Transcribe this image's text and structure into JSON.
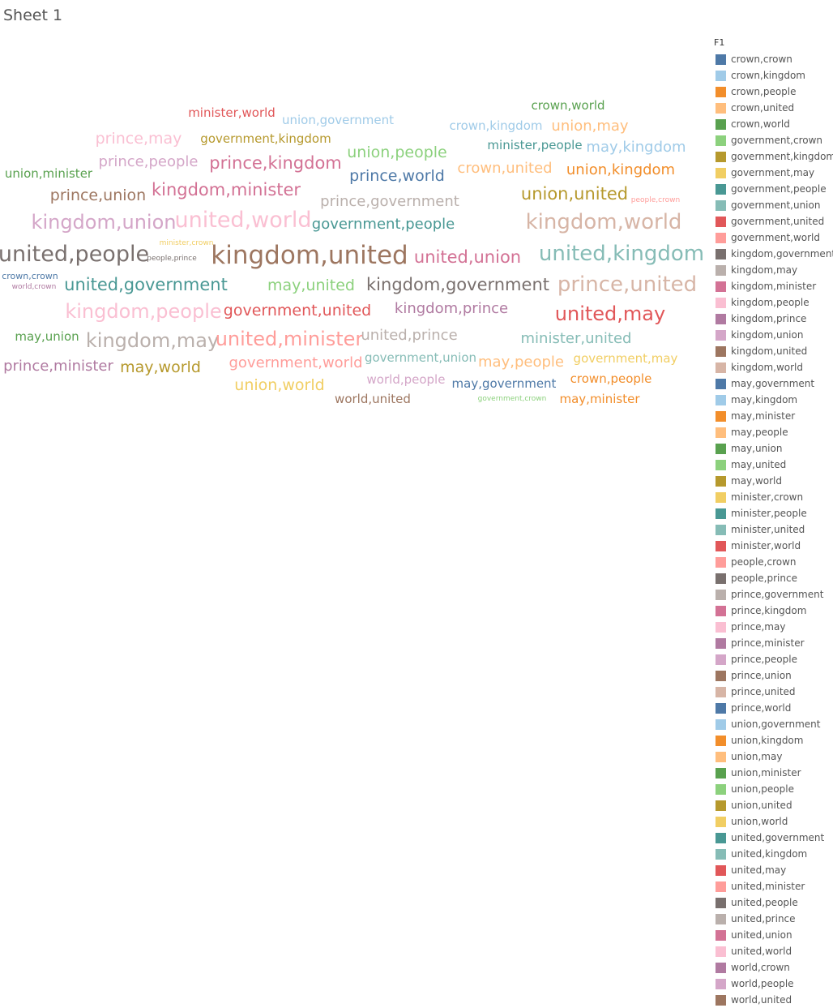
{
  "sheet": {
    "title": "Sheet 1"
  },
  "legend": {
    "title": "F1",
    "items": [
      {
        "label": "crown,crown",
        "color": "#4e79a7"
      },
      {
        "label": "crown,kingdom",
        "color": "#a0cbe8"
      },
      {
        "label": "crown,people",
        "color": "#f28e2b"
      },
      {
        "label": "crown,united",
        "color": "#ffbe7d"
      },
      {
        "label": "crown,world",
        "color": "#59a14f"
      },
      {
        "label": "government,crown",
        "color": "#8cd17d"
      },
      {
        "label": "government,kingdom",
        "color": "#b6992d"
      },
      {
        "label": "government,may",
        "color": "#f1ce63"
      },
      {
        "label": "government,people",
        "color": "#499894"
      },
      {
        "label": "government,union",
        "color": "#86bcb6"
      },
      {
        "label": "government,united",
        "color": "#e15759"
      },
      {
        "label": "government,world",
        "color": "#ff9d9a"
      },
      {
        "label": "kingdom,government",
        "color": "#79706e"
      },
      {
        "label": "kingdom,may",
        "color": "#bab0ac"
      },
      {
        "label": "kingdom,minister",
        "color": "#d37295"
      },
      {
        "label": "kingdom,people",
        "color": "#fabfd2"
      },
      {
        "label": "kingdom,prince",
        "color": "#b07aa1"
      },
      {
        "label": "kingdom,union",
        "color": "#d4a6c8"
      },
      {
        "label": "kingdom,united",
        "color": "#9d7660"
      },
      {
        "label": "kingdom,world",
        "color": "#d7b5a6"
      },
      {
        "label": "may,government",
        "color": "#4e79a7"
      },
      {
        "label": "may,kingdom",
        "color": "#a0cbe8"
      },
      {
        "label": "may,minister",
        "color": "#f28e2b"
      },
      {
        "label": "may,people",
        "color": "#ffbe7d"
      },
      {
        "label": "may,union",
        "color": "#59a14f"
      },
      {
        "label": "may,united",
        "color": "#8cd17d"
      },
      {
        "label": "may,world",
        "color": "#b6992d"
      },
      {
        "label": "minister,crown",
        "color": "#f1ce63"
      },
      {
        "label": "minister,people",
        "color": "#499894"
      },
      {
        "label": "minister,united",
        "color": "#86bcb6"
      },
      {
        "label": "minister,world",
        "color": "#e15759"
      },
      {
        "label": "people,crown",
        "color": "#ff9d9a"
      },
      {
        "label": "people,prince",
        "color": "#79706e"
      },
      {
        "label": "prince,government",
        "color": "#bab0ac"
      },
      {
        "label": "prince,kingdom",
        "color": "#d37295"
      },
      {
        "label": "prince,may",
        "color": "#fabfd2"
      },
      {
        "label": "prince,minister",
        "color": "#b07aa1"
      },
      {
        "label": "prince,people",
        "color": "#d4a6c8"
      },
      {
        "label": "prince,union",
        "color": "#9d7660"
      },
      {
        "label": "prince,united",
        "color": "#d7b5a6"
      },
      {
        "label": "prince,world",
        "color": "#4e79a7"
      },
      {
        "label": "union,government",
        "color": "#a0cbe8"
      },
      {
        "label": "union,kingdom",
        "color": "#f28e2b"
      },
      {
        "label": "union,may",
        "color": "#ffbe7d"
      },
      {
        "label": "union,minister",
        "color": "#59a14f"
      },
      {
        "label": "union,people",
        "color": "#8cd17d"
      },
      {
        "label": "union,united",
        "color": "#b6992d"
      },
      {
        "label": "union,world",
        "color": "#f1ce63"
      },
      {
        "label": "united,government",
        "color": "#499894"
      },
      {
        "label": "united,kingdom",
        "color": "#86bcb6"
      },
      {
        "label": "united,may",
        "color": "#e15759"
      },
      {
        "label": "united,minister",
        "color": "#ff9d9a"
      },
      {
        "label": "united,people",
        "color": "#79706e"
      },
      {
        "label": "united,prince",
        "color": "#bab0ac"
      },
      {
        "label": "united,union",
        "color": "#d37295"
      },
      {
        "label": "united,world",
        "color": "#fabfd2"
      },
      {
        "label": "world,crown",
        "color": "#b07aa1"
      },
      {
        "label": "world,people",
        "color": "#d4a6c8"
      },
      {
        "label": "world,united",
        "color": "#9d7660"
      }
    ]
  },
  "chart_data": {
    "type": "word-cloud",
    "title": "Sheet 1",
    "legend_title": "F1",
    "legend_position": "right",
    "words": [
      {
        "text": "kingdom,united",
        "weight": 10,
        "color": "#9d7660"
      },
      {
        "text": "united,people",
        "weight": 9,
        "color": "#79706e"
      },
      {
        "text": "united,world",
        "weight": 9,
        "color": "#fabfd2"
      },
      {
        "text": "kingdom,world",
        "weight": 8,
        "color": "#d7b5a6"
      },
      {
        "text": "united,kingdom",
        "weight": 8,
        "color": "#86bcb6"
      },
      {
        "text": "prince,united",
        "weight": 8,
        "color": "#d7b5a6"
      },
      {
        "text": "united,may",
        "weight": 7,
        "color": "#e15759"
      },
      {
        "text": "kingdom,people",
        "weight": 7,
        "color": "#fabfd2"
      },
      {
        "text": "kingdom,may",
        "weight": 7,
        "color": "#bab0ac"
      },
      {
        "text": "united,minister",
        "weight": 7,
        "color": "#ff9d9a"
      },
      {
        "text": "kingdom,union",
        "weight": 7,
        "color": "#d4a6c8"
      },
      {
        "text": "kingdom,minister",
        "weight": 6,
        "color": "#d37295"
      },
      {
        "text": "prince,kingdom",
        "weight": 6,
        "color": "#d37295"
      },
      {
        "text": "united,government",
        "weight": 6,
        "color": "#499894"
      },
      {
        "text": "united,union",
        "weight": 6,
        "color": "#d37295"
      },
      {
        "text": "union,united",
        "weight": 6,
        "color": "#b6992d"
      },
      {
        "text": "kingdom,government",
        "weight": 6,
        "color": "#79706e"
      },
      {
        "text": "prince,union",
        "weight": 5,
        "color": "#9d7660"
      },
      {
        "text": "prince,world",
        "weight": 5,
        "color": "#4e79a7"
      },
      {
        "text": "prince,may",
        "weight": 5,
        "color": "#fabfd2"
      },
      {
        "text": "may,united",
        "weight": 5,
        "color": "#8cd17d"
      },
      {
        "text": "government,united",
        "weight": 5,
        "color": "#e15759"
      },
      {
        "text": "union,people",
        "weight": 5,
        "color": "#8cd17d"
      },
      {
        "text": "union,world",
        "weight": 5,
        "color": "#f1ce63"
      },
      {
        "text": "may,world",
        "weight": 5,
        "color": "#b6992d"
      },
      {
        "text": "kingdom,prince",
        "weight": 4,
        "color": "#b07aa1"
      },
      {
        "text": "prince,people",
        "weight": 4,
        "color": "#d4a6c8"
      },
      {
        "text": "prince,government",
        "weight": 4,
        "color": "#bab0ac"
      },
      {
        "text": "united,prince",
        "weight": 4,
        "color": "#bab0ac"
      },
      {
        "text": "crown,united",
        "weight": 4,
        "color": "#ffbe7d"
      },
      {
        "text": "union,kingdom",
        "weight": 4,
        "color": "#f28e2b"
      },
      {
        "text": "may,kingdom",
        "weight": 4,
        "color": "#a0cbe8"
      },
      {
        "text": "union,may",
        "weight": 4,
        "color": "#ffbe7d"
      },
      {
        "text": "government,people",
        "weight": 4,
        "color": "#499894"
      },
      {
        "text": "minister,united",
        "weight": 4,
        "color": "#86bcb6"
      },
      {
        "text": "may,people",
        "weight": 4,
        "color": "#ffbe7d"
      },
      {
        "text": "government,world",
        "weight": 4,
        "color": "#ff9d9a"
      },
      {
        "text": "prince,minister",
        "weight": 4,
        "color": "#b07aa1"
      },
      {
        "text": "government,kingdom",
        "weight": 3,
        "color": "#b6992d"
      },
      {
        "text": "minister,world",
        "weight": 3,
        "color": "#e15759"
      },
      {
        "text": "crown,kingdom",
        "weight": 3,
        "color": "#a0cbe8"
      },
      {
        "text": "minister,people",
        "weight": 3,
        "color": "#499894"
      },
      {
        "text": "may,union",
        "weight": 3,
        "color": "#59a14f"
      },
      {
        "text": "union,minister",
        "weight": 3,
        "color": "#59a14f"
      },
      {
        "text": "union,government",
        "weight": 3,
        "color": "#a0cbe8"
      },
      {
        "text": "crown,world",
        "weight": 3,
        "color": "#59a14f"
      },
      {
        "text": "world,people",
        "weight": 3,
        "color": "#d4a6c8"
      },
      {
        "text": "may,government",
        "weight": 3,
        "color": "#4e79a7"
      },
      {
        "text": "crown,people",
        "weight": 3,
        "color": "#f28e2b"
      },
      {
        "text": "world,united",
        "weight": 3,
        "color": "#9d7660"
      },
      {
        "text": "may,minister",
        "weight": 3,
        "color": "#f28e2b"
      },
      {
        "text": "government,union",
        "weight": 3,
        "color": "#86bcb6"
      },
      {
        "text": "government,may",
        "weight": 3,
        "color": "#f1ce63"
      },
      {
        "text": "crown,crown",
        "weight": 2,
        "color": "#4e79a7"
      },
      {
        "text": "world,crown",
        "weight": 1,
        "color": "#b07aa1"
      },
      {
        "text": "people,prince",
        "weight": 1,
        "color": "#79706e"
      },
      {
        "text": "minister,crown",
        "weight": 1,
        "color": "#f1ce63"
      },
      {
        "text": "people,crown",
        "weight": 1,
        "color": "#ff9d9a"
      },
      {
        "text": "government,crown",
        "weight": 1,
        "color": "#8cd17d"
      }
    ]
  }
}
